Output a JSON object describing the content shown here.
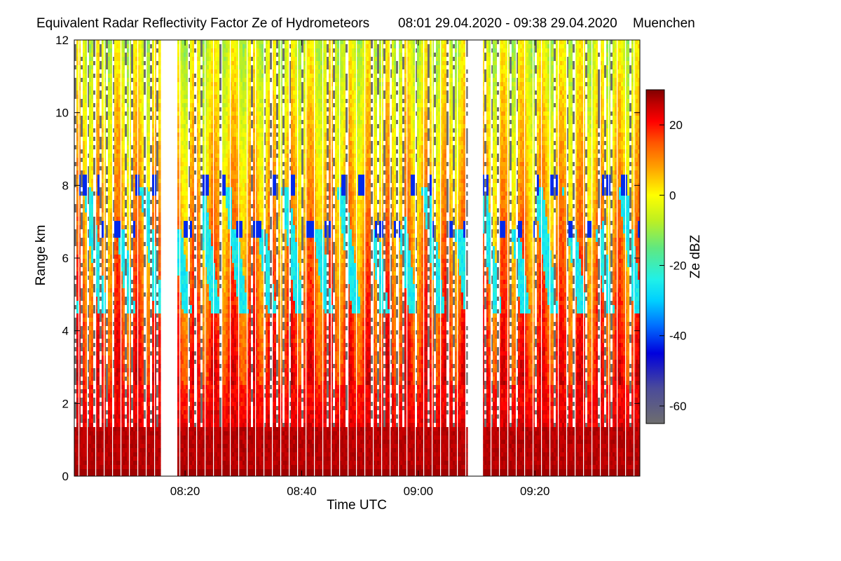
{
  "chart_data": {
    "type": "heatmap",
    "title": "Equivalent Radar Reflectivity Factor Ze of Hydrometeors",
    "time_range": "08:01 29.04.2020 - 09:38 29.04.2020",
    "location": "Muenchen",
    "xlabel": "Time UTC",
    "ylabel": "Range km",
    "xlim_minutes_utc": [
      481,
      578
    ],
    "ylim_km": [
      0,
      12
    ],
    "x_ticks": [
      {
        "minute": 500,
        "label": "08:20"
      },
      {
        "minute": 520,
        "label": "08:40"
      },
      {
        "minute": 540,
        "label": "09:00"
      },
      {
        "minute": 560,
        "label": "09:20"
      }
    ],
    "y_ticks": [
      {
        "value": 0,
        "label": "0"
      },
      {
        "value": 2,
        "label": "2"
      },
      {
        "value": 4,
        "label": "4"
      },
      {
        "value": 6,
        "label": "6"
      },
      {
        "value": 8,
        "label": "8"
      },
      {
        "value": 10,
        "label": "10"
      },
      {
        "value": 12,
        "label": "12"
      }
    ],
    "data_gaps_minutes_utc": [
      [
        495.7,
        498.8
      ],
      [
        548.4,
        551.1
      ]
    ],
    "bright_band_km": 1.3,
    "cloud_base_layers_km": [
      6.8,
      8.0
    ],
    "colorbar": {
      "label": "Ze dBZ",
      "range": [
        -65,
        30
      ],
      "ticks": [
        {
          "value": 20,
          "label": "20"
        },
        {
          "value": 0,
          "label": "0"
        },
        {
          "value": -20,
          "label": "-20"
        },
        {
          "value": -40,
          "label": "-40"
        },
        {
          "value": -60,
          "label": "-60"
        }
      ],
      "stops": [
        {
          "value": -65,
          "color": "#6e6e6e"
        },
        {
          "value": -55,
          "color": "#4b4b9a"
        },
        {
          "value": -45,
          "color": "#0000dd"
        },
        {
          "value": -37,
          "color": "#0070ff"
        },
        {
          "value": -30,
          "color": "#00d0ff"
        },
        {
          "value": -24,
          "color": "#20f0e8"
        },
        {
          "value": -15,
          "color": "#60e880"
        },
        {
          "value": -7,
          "color": "#c0f020"
        },
        {
          "value": 0,
          "color": "#ffff00"
        },
        {
          "value": 8,
          "color": "#ffa000"
        },
        {
          "value": 15,
          "color": "#ff5500"
        },
        {
          "value": 21,
          "color": "#ff0000"
        },
        {
          "value": 26,
          "color": "#c00000"
        },
        {
          "value": 30,
          "color": "#800000"
        }
      ]
    }
  }
}
